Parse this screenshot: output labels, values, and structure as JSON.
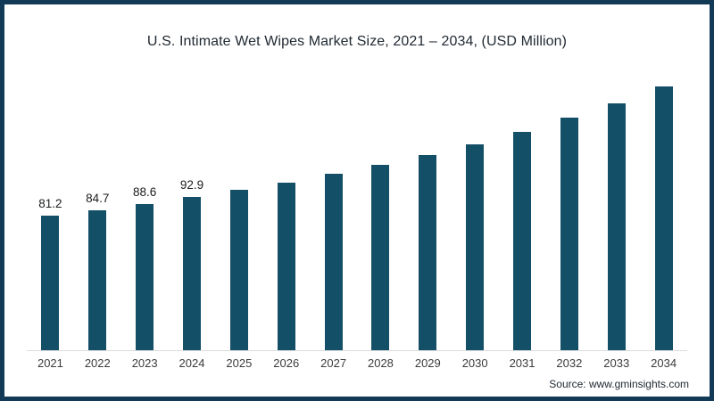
{
  "chart_data": {
    "type": "bar",
    "title": "U.S. Intimate Wet Wipes Market Size, 2021 – 2034, (USD Million)",
    "categories": [
      "2021",
      "2022",
      "2023",
      "2024",
      "2025",
      "2026",
      "2027",
      "2028",
      "2029",
      "2030",
      "2031",
      "2032",
      "2033",
      "2034"
    ],
    "values": [
      81.2,
      84.7,
      88.6,
      92.9,
      97.1,
      101.3,
      106.6,
      112.0,
      118.0,
      124.8,
      132.3,
      140.8,
      149.6,
      159.5
    ],
    "bar_labels": [
      "81.2",
      "84.7",
      "88.6",
      "92.9",
      "",
      "",
      "",
      "",
      "",
      "",
      "",
      "",
      "",
      ""
    ],
    "xlabel": "",
    "ylabel": "",
    "ylim": [
      0,
      174
    ],
    "grid": false,
    "legend": false
  },
  "source": {
    "text": "Source: www.gminsights.com"
  },
  "colors": {
    "bar": "#144f68",
    "frame_border": "#123a57",
    "axis_line": "#dcdcdc",
    "title_text": "#212a33",
    "tick_text": "#3b3b3b",
    "label_text": "#1c1c1c"
  }
}
